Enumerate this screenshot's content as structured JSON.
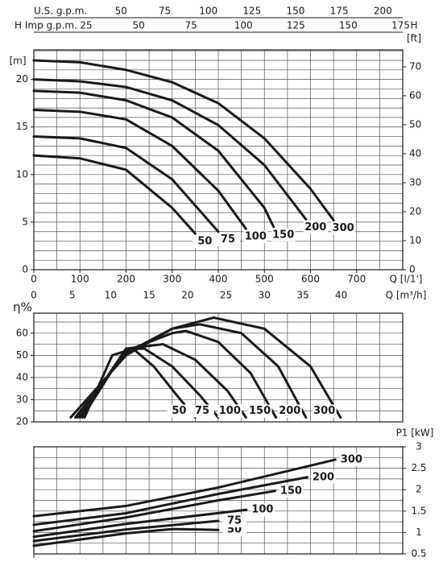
{
  "chart_data": [
    {
      "type": "line",
      "ylabel": "[m]",
      "y2label": "[ft]",
      "y2_title": "H",
      "xlabel": "Q [l/1']",
      "xlim": [
        0,
        800
      ],
      "xticks": [
        0,
        100,
        200,
        300,
        400,
        500,
        600,
        700
      ],
      "xgrid": [
        50,
        100,
        150,
        200,
        250,
        300,
        350,
        400,
        450,
        500,
        550,
        600,
        650,
        700,
        750
      ],
      "ylim": [
        0,
        23.1
      ],
      "yticks": [
        0,
        5,
        10,
        15,
        20
      ],
      "ygrid": [
        1,
        2,
        3,
        4,
        5,
        6,
        7,
        8,
        9,
        10,
        11,
        12,
        13,
        14,
        15,
        16,
        17,
        18,
        19,
        20,
        21,
        22,
        23
      ],
      "y2lim": [
        0,
        75.8
      ],
      "y2ticks": [
        0,
        10,
        20,
        30,
        40,
        50,
        60,
        70
      ],
      "top_axes": [
        {
          "label": "U.S. g.p.m.",
          "xlim": [
            0,
            211.4
          ],
          "ticks": [
            50,
            75,
            100,
            125,
            150,
            175,
            200
          ]
        },
        {
          "label": "H Imp g.p.m.",
          "xlim": [
            0,
            176
          ],
          "ticks": [
            25,
            50,
            75,
            100,
            125,
            150,
            175
          ]
        }
      ],
      "bottom_axis2": {
        "label": "Q [m³/h]",
        "xlim": [
          0,
          48
        ],
        "ticks": [
          0,
          5,
          10,
          15,
          20,
          25,
          30,
          35,
          40
        ]
      },
      "color": "#1a1a1a",
      "series": [
        {
          "name": "50",
          "x": [
            0,
            100,
            200,
            300,
            350
          ],
          "values": [
            12,
            11.7,
            10.5,
            6.5,
            3.8
          ]
        },
        {
          "name": "75",
          "x": [
            0,
            100,
            200,
            300,
            400
          ],
          "values": [
            14,
            13.8,
            12.8,
            9.5,
            4
          ]
        },
        {
          "name": "100",
          "x": [
            0,
            100,
            200,
            300,
            400,
            460
          ],
          "values": [
            16.8,
            16.6,
            15.8,
            13,
            8.3,
            4.3
          ]
        },
        {
          "name": "150",
          "x": [
            0,
            100,
            200,
            300,
            400,
            500,
            520
          ],
          "values": [
            18.8,
            18.6,
            17.8,
            16,
            12.5,
            6.5,
            4.5
          ]
        },
        {
          "name": "200",
          "x": [
            0,
            100,
            200,
            300,
            400,
            500,
            590
          ],
          "values": [
            20,
            19.8,
            19.2,
            17.8,
            15.2,
            11,
            5.3
          ]
        },
        {
          "name": "300",
          "x": [
            0,
            100,
            200,
            300,
            400,
            500,
            600,
            650
          ],
          "values": [
            22,
            21.8,
            21,
            19.7,
            17.5,
            13.8,
            8.5,
            5.2
          ]
        }
      ]
    },
    {
      "type": "line",
      "ylabel": "η%",
      "xlim": [
        0,
        800
      ],
      "xgrid": [
        50,
        100,
        150,
        200,
        250,
        300,
        350,
        400,
        450,
        500,
        550,
        600,
        650,
        700,
        750
      ],
      "ylim": [
        20,
        69
      ],
      "yticks": [
        20,
        30,
        40,
        50,
        60
      ],
      "ygrid": [
        25,
        30,
        35,
        40,
        45,
        50,
        55,
        60,
        65
      ],
      "color": "#1a1a1a",
      "series": [
        {
          "name": "50",
          "x": [
            110,
            170,
            215,
            260,
            310,
            350
          ],
          "values": [
            22,
            50,
            53,
            45,
            32,
            22
          ]
        },
        {
          "name": "75",
          "x": [
            105,
            200,
            240,
            300,
            360,
            400
          ],
          "values": [
            22,
            53,
            53,
            45,
            32,
            22
          ]
        },
        {
          "name": "100",
          "x": [
            100,
            200,
            280,
            350,
            420,
            460
          ],
          "values": [
            22,
            53,
            55,
            48,
            34,
            22
          ]
        },
        {
          "name": "150",
          "x": [
            95,
            200,
            300,
            330,
            400,
            470,
            525
          ],
          "values": [
            22,
            52,
            60,
            61,
            56,
            42,
            22
          ]
        },
        {
          "name": "200",
          "x": [
            90,
            200,
            300,
            360,
            450,
            530,
            590
          ],
          "values": [
            22,
            51,
            62,
            64,
            60,
            45,
            22
          ]
        },
        {
          "name": "300",
          "x": [
            80,
            200,
            300,
            390,
            500,
            600,
            665
          ],
          "values": [
            22,
            50,
            62,
            67,
            62,
            45,
            22
          ]
        }
      ]
    },
    {
      "type": "line",
      "ylabel": "P1 [kW]",
      "xlim": [
        0,
        800
      ],
      "xgrid": [
        50,
        100,
        150,
        200,
        250,
        300,
        350,
        400,
        450,
        500,
        550,
        600,
        650,
        700,
        750
      ],
      "ylim": [
        0.5,
        3
      ],
      "yticks": [
        0.5,
        1,
        1.5,
        2,
        2.5,
        3
      ],
      "ygrid": [
        0.75,
        1,
        1.25,
        1.5,
        1.75,
        2,
        2.25,
        2.5,
        2.75
      ],
      "color": "#1a1a1a",
      "series": [
        {
          "name": "50",
          "x": [
            0,
            200,
            300,
            400
          ],
          "values": [
            0.69,
            0.98,
            1.08,
            1.06
          ]
        },
        {
          "name": "75",
          "x": [
            0,
            200,
            400
          ],
          "values": [
            0.8,
            1.07,
            1.27
          ]
        },
        {
          "name": "100",
          "x": [
            0,
            200,
            461
          ],
          "values": [
            0.9,
            1.2,
            1.53
          ]
        },
        {
          "name": "150",
          "x": [
            0,
            200,
            400,
            523
          ],
          "values": [
            1.03,
            1.35,
            1.75,
            1.97
          ]
        },
        {
          "name": "200",
          "x": [
            0,
            200,
            400,
            593
          ],
          "values": [
            1.18,
            1.45,
            1.9,
            2.29
          ]
        },
        {
          "name": "300",
          "x": [
            0,
            200,
            400,
            654
          ],
          "values": [
            1.38,
            1.62,
            2.05,
            2.7
          ]
        }
      ]
    }
  ]
}
